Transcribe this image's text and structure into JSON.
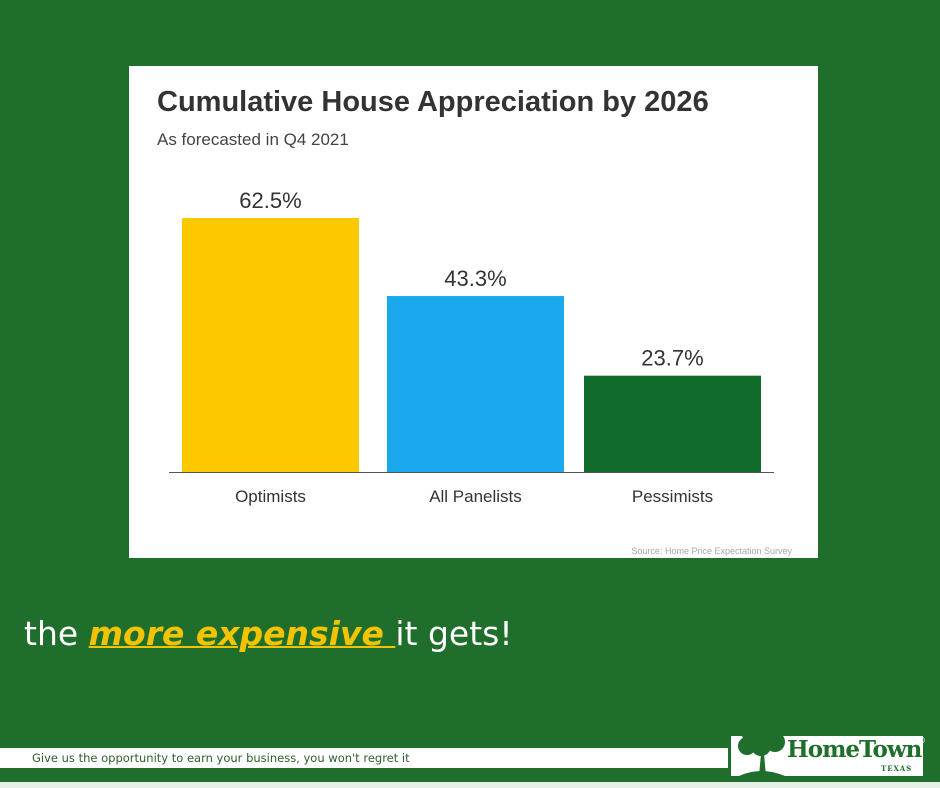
{
  "chart_data": {
    "type": "bar",
    "title": "Cumulative House Appreciation by 2026",
    "subtitle": "As forecasted in Q4 2021",
    "categories": [
      "Optimists",
      "All Panelists",
      "Pessimists"
    ],
    "values": [
      62.5,
      43.3,
      23.7
    ],
    "data_labels": [
      "62.5%",
      "43.3%",
      "23.7%"
    ],
    "colors": [
      "#fcc800",
      "#1aa9ec",
      "#116b2a"
    ],
    "ylim": [
      0,
      62.5
    ],
    "xlabel": "",
    "ylabel": "",
    "grid": false,
    "legend": "none",
    "source": "Source: Home Price Expectation Survey"
  },
  "headline": {
    "prefix": "the ",
    "emphasis": "more expensive ",
    "suffix": "it gets!"
  },
  "footer": {
    "tagline": "Give us the opportunity to earn your business, you won't regret it"
  },
  "logo": {
    "name": "HomeTown",
    "registered": "®",
    "region": "TEXAS",
    "icon": "oak-tree-icon"
  },
  "colors": {
    "background": "#1f6e2c",
    "accent": "#f2c300"
  }
}
